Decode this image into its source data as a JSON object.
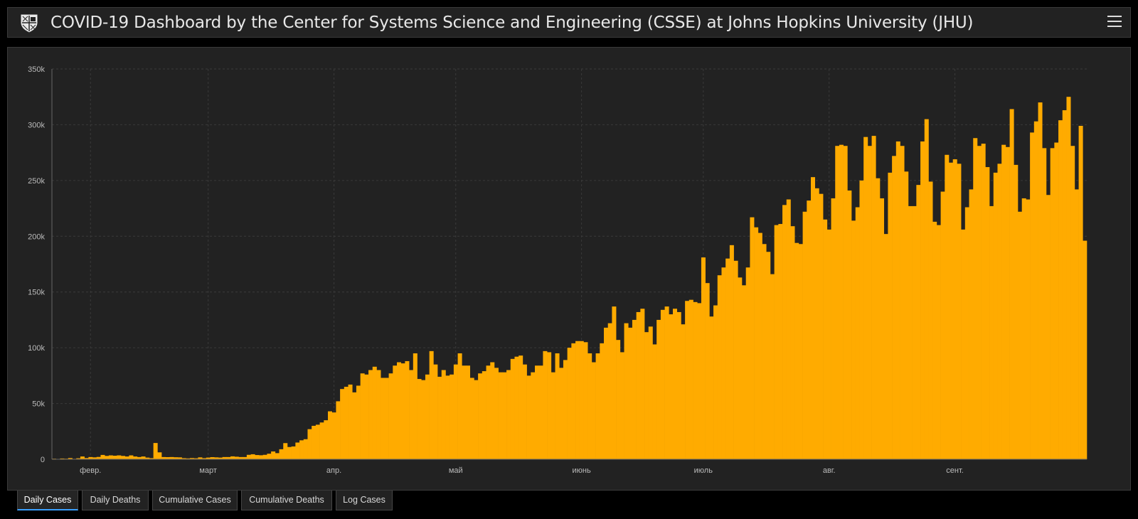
{
  "header": {
    "title": "COVID-19 Dashboard by the Center for Systems Science and Engineering (CSSE) at Johns Hopkins University (JHU)"
  },
  "tabs": [
    {
      "label": "Daily Cases",
      "active": true
    },
    {
      "label": "Daily Deaths",
      "active": false
    },
    {
      "label": "Cumulative Cases",
      "active": false
    },
    {
      "label": "Cumulative Deaths",
      "active": false
    },
    {
      "label": "Log Cases",
      "active": false
    }
  ],
  "colors": {
    "bar": "#ffab00",
    "background": "#222222",
    "grid": "#3a3a3a",
    "axis_text": "#bbbbbb"
  },
  "chart_data": {
    "type": "bar",
    "title": "",
    "xlabel": "",
    "ylabel": "",
    "ylim": [
      0,
      350000
    ],
    "grid": true,
    "yticks": [
      {
        "value": 0,
        "label": "0"
      },
      {
        "value": 50000,
        "label": "50k"
      },
      {
        "value": 100000,
        "label": "100k"
      },
      {
        "value": 150000,
        "label": "150k"
      },
      {
        "value": 200000,
        "label": "200k"
      },
      {
        "value": 250000,
        "label": "250k"
      },
      {
        "value": 300000,
        "label": "300k"
      },
      {
        "value": 350000,
        "label": "350k"
      }
    ],
    "xticks": [
      {
        "label": "февр.",
        "index": 9
      },
      {
        "label": "март",
        "index": 38
      },
      {
        "label": "апр.",
        "index": 69
      },
      {
        "label": "май",
        "index": 99
      },
      {
        "label": "июнь",
        "index": 130
      },
      {
        "label": "июль",
        "index": 160
      },
      {
        "label": "авг.",
        "index": 191
      },
      {
        "label": "сент.",
        "index": 222
      }
    ],
    "start_day": "2020-01-22",
    "values": [
      500,
      200,
      700,
      500,
      1100,
      400,
      900,
      2500,
      1100,
      2000,
      1700,
      2100,
      3900,
      3000,
      3500,
      3200,
      3500,
      3000,
      2500,
      3500,
      2500,
      2000,
      2500,
      1500,
      1000,
      14600,
      6200,
      2000,
      1900,
      2000,
      1800,
      1700,
      1000,
      800,
      1100,
      900,
      1700,
      1000,
      1500,
      1900,
      1700,
      1500,
      2000,
      2000,
      2600,
      2300,
      2000,
      2000,
      4000,
      4500,
      3800,
      3600,
      4000,
      5000,
      7000,
      5500,
      9000,
      14500,
      11000,
      11500,
      15000,
      17000,
      18000,
      27000,
      30000,
      31000,
      33000,
      35000,
      43000,
      42000,
      52000,
      63000,
      65000,
      67000,
      60000,
      66000,
      77000,
      76000,
      80000,
      83000,
      80000,
      73000,
      73000,
      77000,
      84000,
      87000,
      86000,
      88000,
      80000,
      95000,
      72000,
      71000,
      76000,
      97000,
      85000,
      74000,
      80000,
      75000,
      76000,
      85000,
      95000,
      84000,
      84000,
      73000,
      71000,
      77000,
      79000,
      84000,
      87000,
      82000,
      78000,
      78000,
      80000,
      90000,
      92000,
      93000,
      85000,
      75000,
      78000,
      84000,
      84000,
      97000,
      96000,
      78000,
      95000,
      82000,
      89000,
      100000,
      104000,
      106000,
      106000,
      105000,
      95000,
      87000,
      95000,
      104000,
      118000,
      122000,
      137000,
      107000,
      96000,
      122000,
      118000,
      125000,
      132000,
      135000,
      114000,
      119000,
      103000,
      125000,
      134000,
      137000,
      130000,
      135000,
      132000,
      121000,
      142000,
      143000,
      141000,
      140000,
      181000,
      158000,
      128000,
      138000,
      165000,
      172000,
      180000,
      192000,
      178000,
      163000,
      156000,
      172000,
      217000,
      208000,
      203000,
      193000,
      186000,
      166000,
      210000,
      211000,
      228000,
      233000,
      209000,
      194000,
      193000,
      222000,
      232000,
      253000,
      243000,
      238000,
      215000,
      206000,
      234000,
      281000,
      282000,
      281000,
      241000,
      214000,
      226000,
      250000,
      289000,
      281000,
      290000,
      252000,
      234000,
      202000,
      257000,
      272000,
      285000,
      281000,
      258000,
      227000,
      227000,
      246000,
      285000,
      305000,
      249000,
      213000,
      210000,
      240000,
      273000,
      266000,
      269000,
      265000,
      206000,
      226000,
      242000,
      288000,
      281000,
      283000,
      262000,
      227000,
      257000,
      265000,
      282000,
      280000,
      314000,
      264000,
      222000,
      234000,
      233000,
      293000,
      303000,
      320000,
      279000,
      237000,
      279000,
      284000,
      304000,
      313000,
      325000,
      281000,
      242000,
      299000,
      196000
    ]
  }
}
